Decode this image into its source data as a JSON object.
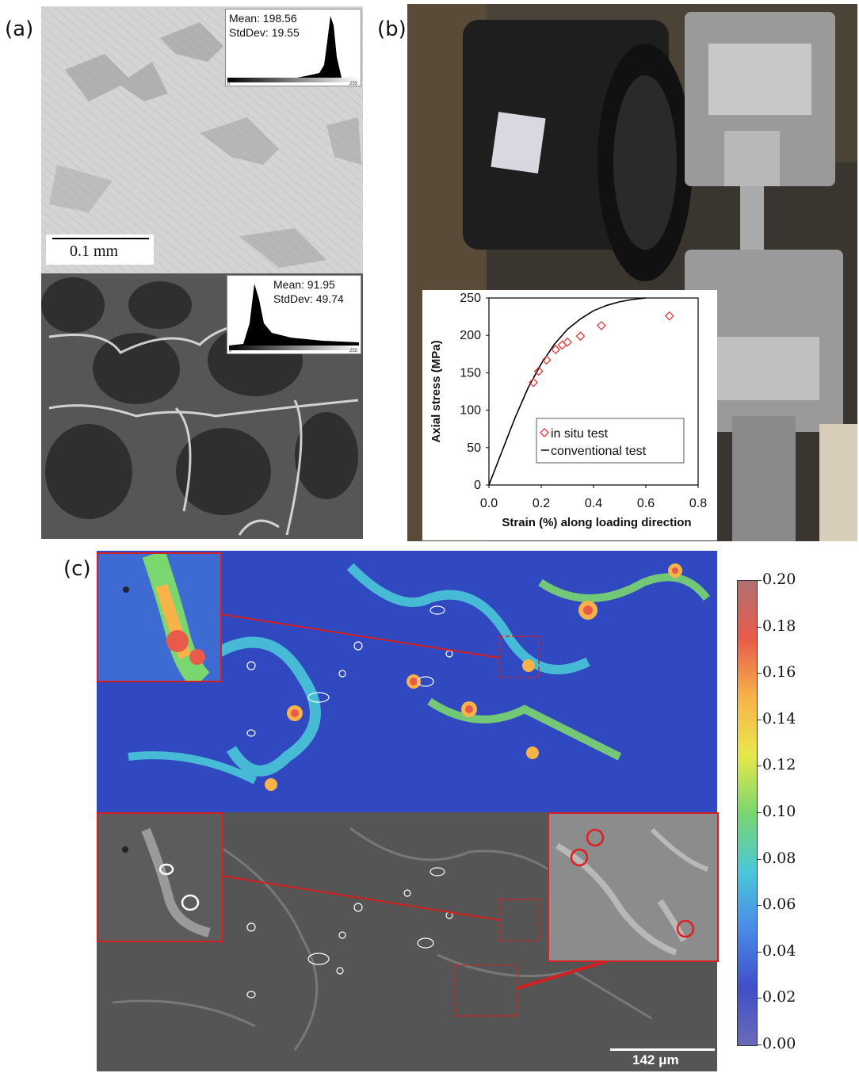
{
  "panels": {
    "a": {
      "label": "(a)",
      "top_hist": {
        "mean": "Mean: 198.56",
        "std": "StdDev: 19.55",
        "min": "0",
        "max": "255"
      },
      "bottom_hist": {
        "mean": "Mean: 91.95",
        "std": "StdDev: 49.74",
        "min": "0",
        "max": "255"
      },
      "scale_bar": "0.1 mm"
    },
    "b": {
      "label": "(b)"
    },
    "c": {
      "label": "(c)",
      "scale_bar": "142 μm",
      "colorbar": {
        "ticks": [
          "0.20",
          "0.18",
          "0.16",
          "0.14",
          "0.12",
          "0.10",
          "0.08",
          "0.06",
          "0.04",
          "0.02",
          "0.00"
        ],
        "colors": [
          "#b07070",
          "#e85b4a",
          "#f7b24a",
          "#e8e84a",
          "#7ad66e",
          "#4ac8d8",
          "#4a8ae8",
          "#3f4fc8",
          "#6a6ab8"
        ]
      }
    }
  },
  "chart_data": {
    "type": "scatter",
    "xlabel": "Strain (%) along loading direction",
    "ylabel": "Axial stress (MPa)",
    "xlim": [
      0,
      0.8
    ],
    "ylim": [
      0,
      250
    ],
    "xticks": [
      "0.0",
      "0.2",
      "0.4",
      "0.6",
      "0.8"
    ],
    "yticks": [
      "0",
      "50",
      "100",
      "150",
      "200",
      "250"
    ],
    "legend_position": "lower-right",
    "series": [
      {
        "name": "in situ test",
        "marker": "diamond",
        "color": "#e03a3a",
        "x": [
          0.17,
          0.19,
          0.22,
          0.255,
          0.28,
          0.3,
          0.35,
          0.43,
          0.69
        ],
        "y": [
          137,
          152,
          167,
          181,
          187,
          191,
          199,
          213,
          226
        ]
      },
      {
        "name": "conventional test",
        "marker": "line",
        "color": "#000000",
        "x": [
          0.0,
          0.02,
          0.05,
          0.1,
          0.15,
          0.2,
          0.25,
          0.3,
          0.35,
          0.4,
          0.45,
          0.5,
          0.55,
          0.6
        ],
        "y": [
          0,
          18,
          45,
          90,
          130,
          162,
          188,
          208,
          222,
          233,
          240,
          245,
          248,
          250
        ]
      }
    ]
  }
}
